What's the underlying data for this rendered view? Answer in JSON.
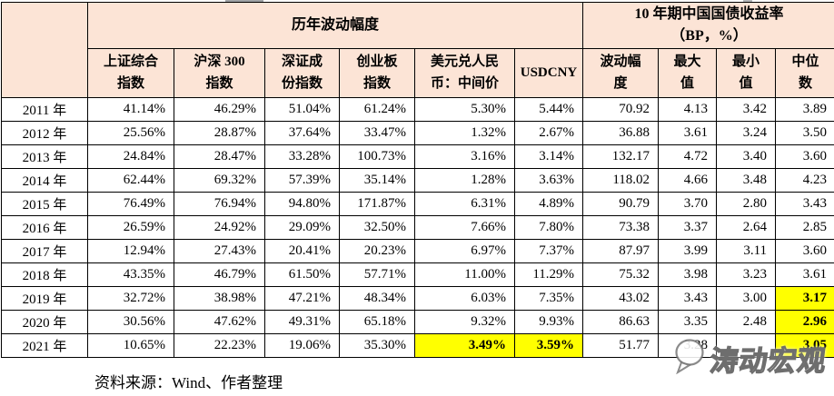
{
  "table": {
    "group_headers": [
      "历年波动幅度",
      "10 年期中国国债收益率\n（BP，%）"
    ],
    "columns": [
      "上证综合\n指数",
      "沪深 300\n指数",
      "深证成\n份指数",
      "创业板\n指数",
      "美元兑人民\n币：中间价",
      "USDCNY",
      "波动幅\n度",
      "最大\n值",
      "最小\n值",
      "中位\n数"
    ],
    "rows": [
      {
        "year": "2011 年",
        "values": [
          "41.14%",
          "46.29%",
          "51.04%",
          "61.24%",
          "5.30%",
          "5.44%",
          "70.92",
          "4.13",
          "3.42",
          "3.89"
        ],
        "highlight": []
      },
      {
        "year": "2012 年",
        "values": [
          "25.56%",
          "28.87%",
          "37.64%",
          "33.47%",
          "1.32%",
          "2.67%",
          "36.88",
          "3.61",
          "3.24",
          "3.50"
        ],
        "highlight": []
      },
      {
        "year": "2013 年",
        "values": [
          "24.84%",
          "28.47%",
          "33.28%",
          "100.73%",
          "3.16%",
          "3.14%",
          "132.17",
          "4.72",
          "3.40",
          "3.60"
        ],
        "highlight": []
      },
      {
        "year": "2014 年",
        "values": [
          "62.44%",
          "69.32%",
          "57.39%",
          "35.14%",
          "1.28%",
          "3.63%",
          "118.02",
          "4.66",
          "3.48",
          "4.23"
        ],
        "highlight": []
      },
      {
        "year": "2015 年",
        "values": [
          "76.49%",
          "76.94%",
          "94.80%",
          "171.87%",
          "6.31%",
          "4.89%",
          "90.79",
          "3.70",
          "2.80",
          "3.43"
        ],
        "highlight": []
      },
      {
        "year": "2016 年",
        "values": [
          "26.59%",
          "24.92%",
          "29.09%",
          "32.50%",
          "7.66%",
          "7.80%",
          "73.38",
          "3.37",
          "2.64",
          "2.85"
        ],
        "highlight": []
      },
      {
        "year": "2017 年",
        "values": [
          "12.94%",
          "27.43%",
          "20.41%",
          "20.23%",
          "6.97%",
          "7.37%",
          "87.97",
          "3.99",
          "3.11",
          "3.60"
        ],
        "highlight": []
      },
      {
        "year": "2018 年",
        "values": [
          "43.35%",
          "46.79%",
          "61.50%",
          "57.71%",
          "11.00%",
          "11.29%",
          "75.32",
          "3.98",
          "3.23",
          "3.61"
        ],
        "highlight": []
      },
      {
        "year": "2019 年",
        "values": [
          "32.72%",
          "38.98%",
          "47.21%",
          "48.34%",
          "6.03%",
          "7.35%",
          "43.02",
          "3.43",
          "3.00",
          "3.17"
        ],
        "highlight": [
          9
        ]
      },
      {
        "year": "2020 年",
        "values": [
          "30.56%",
          "47.62%",
          "49.31%",
          "65.18%",
          "9.32%",
          "9.93%",
          "86.63",
          "3.35",
          "2.48",
          "2.96"
        ],
        "highlight": [
          9
        ]
      },
      {
        "year": "2021 年",
        "values": [
          "10.65%",
          "22.23%",
          "19.06%",
          "35.30%",
          "3.49%",
          "3.59%",
          "51.77",
          "3.28",
          "",
          "3.05"
        ],
        "highlight": [
          4,
          5,
          9
        ]
      }
    ]
  },
  "footer": {
    "source": "资料来源：Wind、作者整理"
  },
  "watermark": {
    "text": "涛动宏观",
    "icon": "chat-bubble-icon"
  },
  "colors": {
    "header_bg": "#FCE4D6",
    "highlight_bg": "#FFFF00",
    "border": "#000000"
  }
}
